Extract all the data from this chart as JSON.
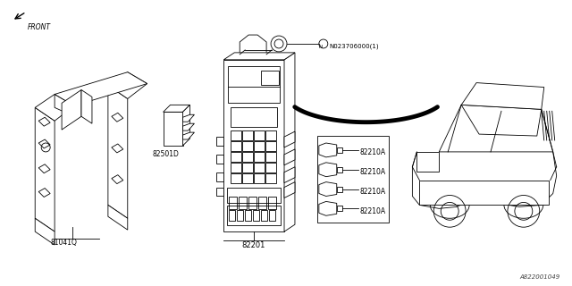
{
  "bg_color": "#ffffff",
  "line_color": "#000000",
  "watermark": "A822001049",
  "front_text": "FRONT",
  "bracket_label": "81041Q",
  "relay_label": "82501D",
  "fusebox_label": "82201",
  "fuse_label": "82210A",
  "nut_label": "N023706000(1)"
}
